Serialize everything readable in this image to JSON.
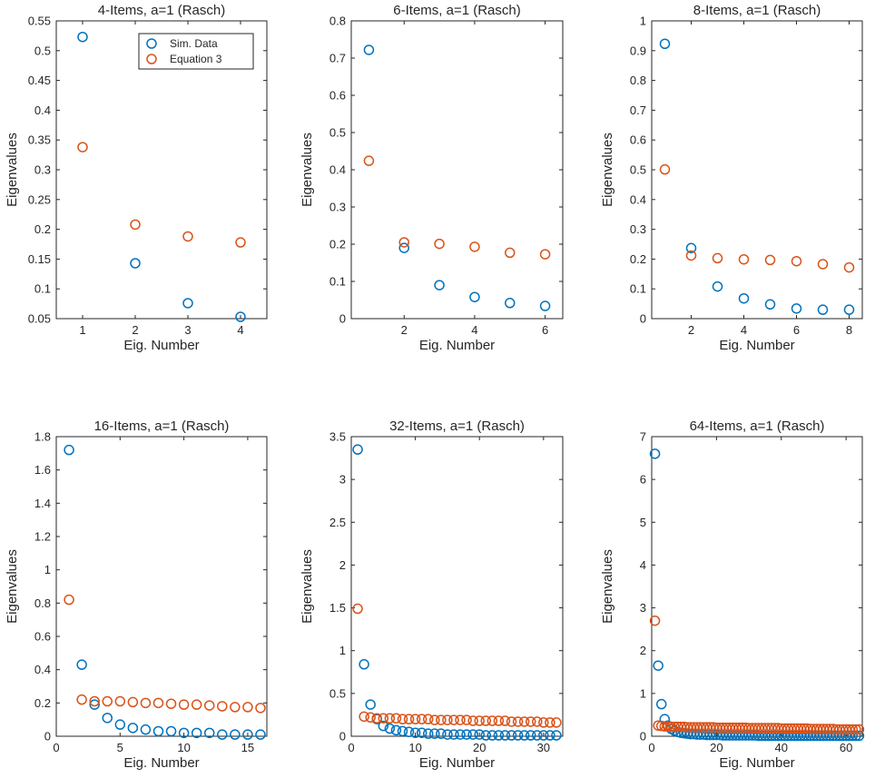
{
  "figure": {
    "legend_panel": 0,
    "legend_placement": "top-right"
  },
  "colors": {
    "sim": "#0072BD",
    "eq3": "#D95319",
    "axis": "#262626"
  },
  "legend": {
    "entries": [
      "Sim. Data",
      "Equation 3"
    ]
  },
  "chart_data": [
    {
      "type": "scatter",
      "title": "4-Items, a=1 (Rasch)",
      "xlabel": "Eig. Number",
      "ylabel": "Eigenvalues",
      "xlim": [
        0.5,
        4.5
      ],
      "ylim": [
        0.05,
        0.55
      ],
      "xticks": [
        1,
        2,
        3,
        4
      ],
      "xtick_labels": [
        "1",
        "2",
        "3",
        "4"
      ],
      "yticks": [
        0.05,
        0.1,
        0.15,
        0.2,
        0.25,
        0.3,
        0.35,
        0.4,
        0.45,
        0.5,
        0.55
      ],
      "ytick_labels": [
        "0.05",
        "0.1",
        "0.15",
        "0.2",
        "0.25",
        "0.3",
        "0.35",
        "0.4",
        "0.45",
        "0.5",
        "0.55"
      ],
      "series": [
        {
          "name": "Sim. Data",
          "x": [
            1,
            2,
            3,
            4
          ],
          "values": [
            0.523,
            0.143,
            0.076,
            0.053
          ]
        },
        {
          "name": "Equation 3",
          "x": [
            1,
            2,
            3,
            4
          ],
          "values": [
            0.338,
            0.208,
            0.188,
            0.178
          ]
        }
      ]
    },
    {
      "type": "scatter",
      "title": "6-Items, a=1 (Rasch)",
      "xlabel": "Eig. Number",
      "ylabel": "Eigenvalues",
      "xlim": [
        0.5,
        6.5
      ],
      "ylim": [
        0,
        0.8
      ],
      "xticks": [
        2,
        4,
        6
      ],
      "xtick_labels": [
        "2",
        "4",
        "6"
      ],
      "yticks": [
        0,
        0.1,
        0.2,
        0.3,
        0.4,
        0.5,
        0.6,
        0.7,
        0.8
      ],
      "ytick_labels": [
        "0",
        "0.1",
        "0.2",
        "0.3",
        "0.4",
        "0.5",
        "0.6",
        "0.7",
        "0.8"
      ],
      "series": [
        {
          "name": "Sim. Data",
          "x": [
            1,
            2,
            3,
            4,
            5,
            6
          ],
          "values": [
            0.722,
            0.19,
            0.09,
            0.058,
            0.042,
            0.034
          ]
        },
        {
          "name": "Equation 3",
          "x": [
            1,
            2,
            3,
            4,
            5,
            6
          ],
          "values": [
            0.424,
            0.205,
            0.201,
            0.193,
            0.177,
            0.173
          ]
        }
      ]
    },
    {
      "type": "scatter",
      "title": "8-Items, a=1 (Rasch)",
      "xlabel": "Eig. Number",
      "ylabel": "Eigenvalues",
      "xlim": [
        0.5,
        8.5
      ],
      "ylim": [
        0,
        1
      ],
      "xticks": [
        2,
        4,
        6,
        8
      ],
      "xtick_labels": [
        "2",
        "4",
        "6",
        "8"
      ],
      "yticks": [
        0,
        0.1,
        0.2,
        0.3,
        0.4,
        0.5,
        0.6,
        0.7,
        0.8,
        0.9,
        1
      ],
      "ytick_labels": [
        "0",
        "0.1",
        "0.2",
        "0.3",
        "0.4",
        "0.5",
        "0.6",
        "0.7",
        "0.8",
        "0.9",
        "1"
      ],
      "series": [
        {
          "name": "Sim. Data",
          "x": [
            1,
            2,
            3,
            4,
            5,
            6,
            7,
            8
          ],
          "values": [
            0.923,
            0.237,
            0.108,
            0.068,
            0.048,
            0.034,
            0.03,
            0.03
          ]
        },
        {
          "name": "Equation 3",
          "x": [
            1,
            2,
            3,
            4,
            5,
            6,
            7,
            8
          ],
          "values": [
            0.501,
            0.212,
            0.203,
            0.199,
            0.197,
            0.193,
            0.183,
            0.172
          ]
        }
      ]
    },
    {
      "type": "scatter",
      "title": "16-Items, a=1 (Rasch)",
      "xlabel": "Eig. Number",
      "ylabel": "Eigenvalues",
      "xlim": [
        0,
        16.5
      ],
      "ylim": [
        0,
        1.8
      ],
      "xticks": [
        0,
        5,
        10,
        15
      ],
      "xtick_labels": [
        "0",
        "5",
        "10",
        "15"
      ],
      "yticks": [
        0,
        0.2,
        0.4,
        0.6,
        0.8,
        1,
        1.2,
        1.4,
        1.6,
        1.8
      ],
      "ytick_labels": [
        "0",
        "0.2",
        "0.4",
        "0.6",
        "0.8",
        "1",
        "1.2",
        "1.4",
        "1.6",
        "1.8"
      ],
      "series": [
        {
          "name": "Sim. Data",
          "x": [
            1,
            2,
            3,
            4,
            5,
            6,
            7,
            8,
            9,
            10,
            11,
            12,
            13,
            14,
            15,
            16
          ],
          "values": [
            1.72,
            0.43,
            0.19,
            0.11,
            0.07,
            0.05,
            0.04,
            0.03,
            0.03,
            0.02,
            0.02,
            0.02,
            0.01,
            0.01,
            0.01,
            0.01
          ]
        },
        {
          "name": "Equation 3",
          "x": [
            1,
            2,
            3,
            4,
            5,
            6,
            7,
            8,
            9,
            10,
            11,
            12,
            13,
            14,
            15,
            16
          ],
          "values": [
            0.82,
            0.22,
            0.21,
            0.21,
            0.21,
            0.205,
            0.2,
            0.2,
            0.195,
            0.19,
            0.19,
            0.185,
            0.18,
            0.175,
            0.175,
            0.17
          ]
        }
      ]
    },
    {
      "type": "scatter",
      "title": "32-Items, a=1 (Rasch)",
      "xlabel": "Eig. Number",
      "ylabel": "Eigenvalues",
      "xlim": [
        0,
        33
      ],
      "ylim": [
        0,
        3.5
      ],
      "xticks": [
        0,
        10,
        20,
        30
      ],
      "xtick_labels": [
        "0",
        "10",
        "20",
        "30"
      ],
      "yticks": [
        0,
        0.5,
        1,
        1.5,
        2,
        2.5,
        3,
        3.5
      ],
      "ytick_labels": [
        "0",
        "0.5",
        "1",
        "1.5",
        "2",
        "2.5",
        "3",
        "3.5"
      ],
      "series": [
        {
          "name": "Sim. Data",
          "x": [
            1,
            2,
            3,
            4,
            5,
            6,
            7,
            8,
            9,
            10,
            11,
            12,
            13,
            14,
            15,
            16,
            17,
            18,
            19,
            20,
            21,
            22,
            23,
            24,
            25,
            26,
            27,
            28,
            29,
            30,
            31,
            32
          ],
          "values": [
            3.35,
            0.84,
            0.37,
            0.2,
            0.12,
            0.09,
            0.07,
            0.06,
            0.05,
            0.04,
            0.04,
            0.03,
            0.03,
            0.03,
            0.02,
            0.02,
            0.02,
            0.02,
            0.02,
            0.02,
            0.01,
            0.01,
            0.01,
            0.01,
            0.01,
            0.01,
            0.01,
            0.01,
            0.01,
            0.01,
            0.01,
            0.01
          ]
        },
        {
          "name": "Equation 3",
          "x": [
            1,
            2,
            3,
            4,
            5,
            6,
            7,
            8,
            9,
            10,
            11,
            12,
            13,
            14,
            15,
            16,
            17,
            18,
            19,
            20,
            21,
            22,
            23,
            24,
            25,
            26,
            27,
            28,
            29,
            30,
            31,
            32
          ],
          "values": [
            1.49,
            0.23,
            0.22,
            0.21,
            0.21,
            0.21,
            0.21,
            0.2,
            0.2,
            0.2,
            0.2,
            0.2,
            0.19,
            0.19,
            0.19,
            0.19,
            0.19,
            0.19,
            0.18,
            0.18,
            0.18,
            0.18,
            0.18,
            0.18,
            0.17,
            0.17,
            0.17,
            0.17,
            0.17,
            0.16,
            0.16,
            0.16
          ]
        }
      ]
    },
    {
      "type": "scatter",
      "title": "64-Items, a=1 (Rasch)",
      "xlabel": "Eig. Number",
      "ylabel": "Eigenvalues",
      "xlim": [
        0,
        65
      ],
      "ylim": [
        0,
        7
      ],
      "xticks": [
        0,
        20,
        40,
        60
      ],
      "xtick_labels": [
        "0",
        "20",
        "40",
        "60"
      ],
      "yticks": [
        0,
        1,
        2,
        3,
        4,
        5,
        6,
        7
      ],
      "ytick_labels": [
        "0",
        "1",
        "2",
        "3",
        "4",
        "5",
        "6",
        "7"
      ],
      "series": [
        {
          "name": "Sim. Data",
          "x": [
            1,
            2,
            3,
            4,
            5,
            6,
            7,
            8,
            9,
            10,
            11,
            12,
            13,
            14,
            15,
            16,
            17,
            18,
            19,
            20,
            21,
            22,
            23,
            24,
            25,
            26,
            27,
            28,
            29,
            30,
            31,
            32,
            33,
            34,
            35,
            36,
            37,
            38,
            39,
            40,
            41,
            42,
            43,
            44,
            45,
            46,
            47,
            48,
            49,
            50,
            51,
            52,
            53,
            54,
            55,
            56,
            57,
            58,
            59,
            60,
            61,
            62,
            63,
            64
          ],
          "values": [
            6.6,
            1.65,
            0.75,
            0.4,
            0.25,
            0.17,
            0.13,
            0.1,
            0.08,
            0.07,
            0.06,
            0.05,
            0.05,
            0.04,
            0.04,
            0.04,
            0.03,
            0.03,
            0.03,
            0.03,
            0.03,
            0.02,
            0.02,
            0.02,
            0.02,
            0.02,
            0.02,
            0.02,
            0.02,
            0.02,
            0.02,
            0.02,
            0.01,
            0.01,
            0.01,
            0.01,
            0.01,
            0.01,
            0.01,
            0.01,
            0.01,
            0.01,
            0.01,
            0.01,
            0.01,
            0.01,
            0.01,
            0.01,
            0.01,
            0.01,
            0.01,
            0.01,
            0.01,
            0.01,
            0.01,
            0.01,
            0.01,
            0.01,
            0.01,
            0.01,
            0.01,
            0.01,
            0.01,
            0.01
          ]
        },
        {
          "name": "Equation 3",
          "x": [
            1,
            2,
            3,
            4,
            5,
            6,
            7,
            8,
            9,
            10,
            11,
            12,
            13,
            14,
            15,
            16,
            17,
            18,
            19,
            20,
            21,
            22,
            23,
            24,
            25,
            26,
            27,
            28,
            29,
            30,
            31,
            32,
            33,
            34,
            35,
            36,
            37,
            38,
            39,
            40,
            41,
            42,
            43,
            44,
            45,
            46,
            47,
            48,
            49,
            50,
            51,
            52,
            53,
            54,
            55,
            56,
            57,
            58,
            59,
            60,
            61,
            62,
            63,
            64
          ],
          "values": [
            2.7,
            0.25,
            0.24,
            0.23,
            0.23,
            0.22,
            0.22,
            0.22,
            0.22,
            0.22,
            0.21,
            0.21,
            0.21,
            0.21,
            0.21,
            0.21,
            0.21,
            0.21,
            0.21,
            0.2,
            0.2,
            0.2,
            0.2,
            0.2,
            0.2,
            0.2,
            0.2,
            0.2,
            0.2,
            0.19,
            0.19,
            0.19,
            0.19,
            0.19,
            0.19,
            0.19,
            0.19,
            0.19,
            0.19,
            0.18,
            0.18,
            0.18,
            0.18,
            0.18,
            0.18,
            0.18,
            0.18,
            0.18,
            0.17,
            0.17,
            0.17,
            0.17,
            0.17,
            0.17,
            0.17,
            0.17,
            0.16,
            0.16,
            0.16,
            0.16,
            0.16,
            0.16,
            0.16,
            0.16
          ]
        }
      ]
    }
  ]
}
